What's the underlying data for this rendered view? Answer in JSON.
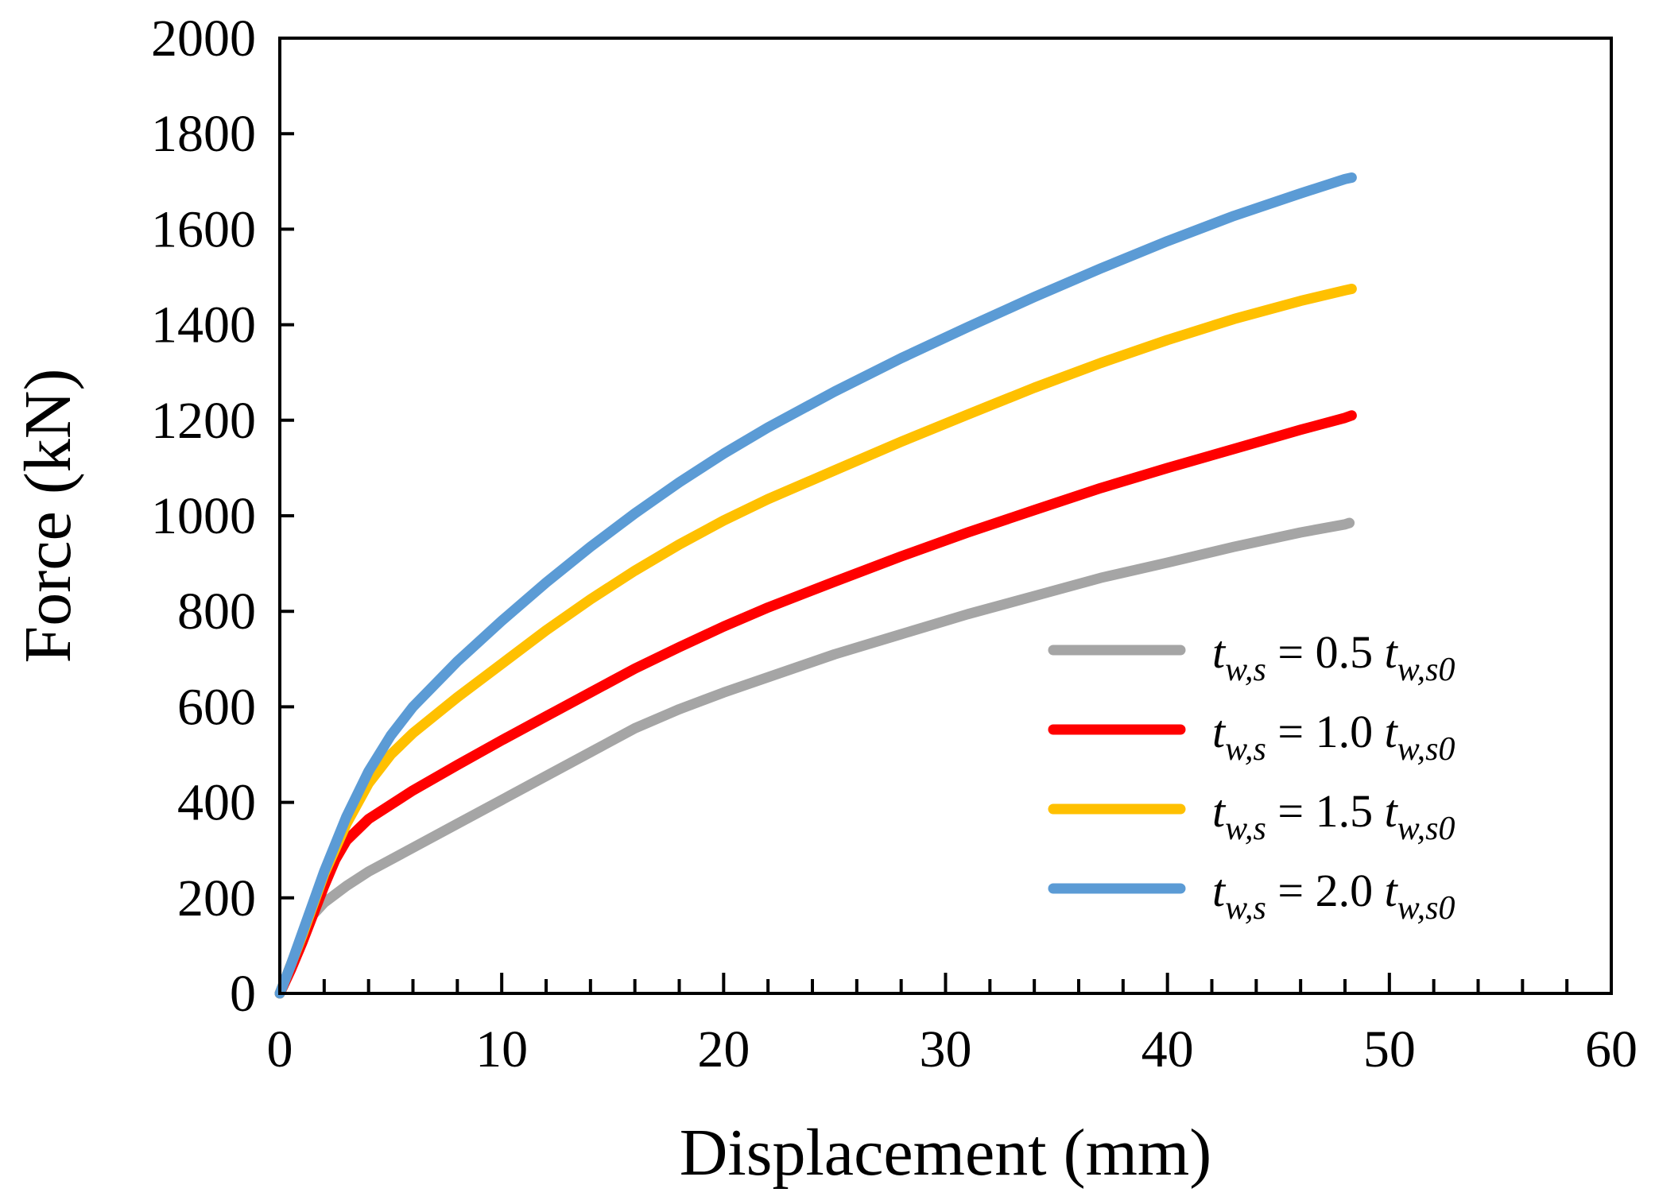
{
  "chart_data": {
    "type": "line",
    "title": "",
    "xlabel": "Displacement (mm)",
    "ylabel": "Force (kN)",
    "xlim": [
      0,
      60
    ],
    "ylim": [
      0,
      2000
    ],
    "x_ticks": [
      0,
      10,
      20,
      30,
      40,
      50,
      60
    ],
    "y_ticks": [
      0,
      200,
      400,
      600,
      800,
      1000,
      1200,
      1400,
      1600,
      1800,
      2000
    ],
    "x_minor_step": 2,
    "grid": false,
    "legend_position": "right",
    "series": [
      {
        "name": "t_{w,s} = 0.5 t_{w,s0}",
        "label_parts": {
          "var": "t",
          "var_sub": "w,s",
          "eq": " = 0.5 ",
          "ref": "t",
          "ref_sub": "w,s0"
        },
        "color": "#A5A5A5",
        "points": [
          [
            0,
            0
          ],
          [
            0.5,
            60
          ],
          [
            1,
            120
          ],
          [
            1.5,
            165
          ],
          [
            2,
            190
          ],
          [
            3,
            225
          ],
          [
            4,
            255
          ],
          [
            6,
            305
          ],
          [
            8,
            355
          ],
          [
            10,
            405
          ],
          [
            12,
            455
          ],
          [
            14,
            505
          ],
          [
            16,
            555
          ],
          [
            18,
            595
          ],
          [
            20,
            630
          ],
          [
            22,
            662
          ],
          [
            25,
            710
          ],
          [
            28,
            752
          ],
          [
            31,
            794
          ],
          [
            34,
            832
          ],
          [
            37,
            870
          ],
          [
            40,
            902
          ],
          [
            43,
            935
          ],
          [
            46,
            965
          ],
          [
            48,
            982
          ],
          [
            48.2,
            985
          ]
        ]
      },
      {
        "name": "t_{w,s} = 1.0 t_{w,s0}",
        "label_parts": {
          "var": "t",
          "var_sub": "w,s",
          "eq": " = 1.0 ",
          "ref": "t",
          "ref_sub": "w,s0"
        },
        "color": "#FF0000",
        "points": [
          [
            0,
            0
          ],
          [
            0.5,
            50
          ],
          [
            1,
            105
          ],
          [
            1.5,
            165
          ],
          [
            2,
            225
          ],
          [
            2.5,
            280
          ],
          [
            3,
            320
          ],
          [
            4,
            365
          ],
          [
            6,
            425
          ],
          [
            8,
            478
          ],
          [
            10,
            530
          ],
          [
            12,
            580
          ],
          [
            14,
            630
          ],
          [
            16,
            680
          ],
          [
            18,
            725
          ],
          [
            20,
            768
          ],
          [
            22,
            808
          ],
          [
            25,
            862
          ],
          [
            28,
            915
          ],
          [
            31,
            965
          ],
          [
            34,
            1012
          ],
          [
            37,
            1058
          ],
          [
            40,
            1100
          ],
          [
            43,
            1140
          ],
          [
            46,
            1180
          ],
          [
            48,
            1205
          ],
          [
            48.3,
            1210
          ]
        ]
      },
      {
        "name": "t_{w,s} = 1.5 t_{w,s0}",
        "label_parts": {
          "var": "t",
          "var_sub": "w,s",
          "eq": " = 1.5 ",
          "ref": "t",
          "ref_sub": "w,s0"
        },
        "color": "#FFC000",
        "points": [
          [
            0,
            0
          ],
          [
            0.5,
            60
          ],
          [
            1,
            120
          ],
          [
            1.5,
            185
          ],
          [
            2,
            250
          ],
          [
            3,
            355
          ],
          [
            4,
            440
          ],
          [
            5,
            500
          ],
          [
            6,
            545
          ],
          [
            8,
            620
          ],
          [
            10,
            690
          ],
          [
            12,
            760
          ],
          [
            14,
            825
          ],
          [
            16,
            885
          ],
          [
            18,
            940
          ],
          [
            20,
            990
          ],
          [
            22,
            1035
          ],
          [
            25,
            1095
          ],
          [
            28,
            1155
          ],
          [
            31,
            1212
          ],
          [
            34,
            1268
          ],
          [
            37,
            1320
          ],
          [
            40,
            1368
          ],
          [
            43,
            1412
          ],
          [
            46,
            1450
          ],
          [
            48,
            1472
          ],
          [
            48.3,
            1475
          ]
        ]
      },
      {
        "name": "t_{w,s} = 2.0 t_{w,s0}",
        "label_parts": {
          "var": "t",
          "var_sub": "w,s",
          "eq": " = 2.0 ",
          "ref": "t",
          "ref_sub": "w,s0"
        },
        "color": "#5B9BD5",
        "points": [
          [
            0,
            0
          ],
          [
            0.5,
            60
          ],
          [
            1,
            125
          ],
          [
            1.5,
            190
          ],
          [
            2,
            255
          ],
          [
            3,
            370
          ],
          [
            4,
            465
          ],
          [
            5,
            540
          ],
          [
            6,
            600
          ],
          [
            8,
            695
          ],
          [
            10,
            780
          ],
          [
            12,
            860
          ],
          [
            14,
            935
          ],
          [
            16,
            1005
          ],
          [
            18,
            1070
          ],
          [
            20,
            1130
          ],
          [
            22,
            1185
          ],
          [
            25,
            1260
          ],
          [
            28,
            1330
          ],
          [
            31,
            1395
          ],
          [
            34,
            1458
          ],
          [
            37,
            1518
          ],
          [
            40,
            1575
          ],
          [
            43,
            1628
          ],
          [
            46,
            1675
          ],
          [
            48,
            1705
          ],
          [
            48.3,
            1708
          ]
        ]
      }
    ]
  }
}
